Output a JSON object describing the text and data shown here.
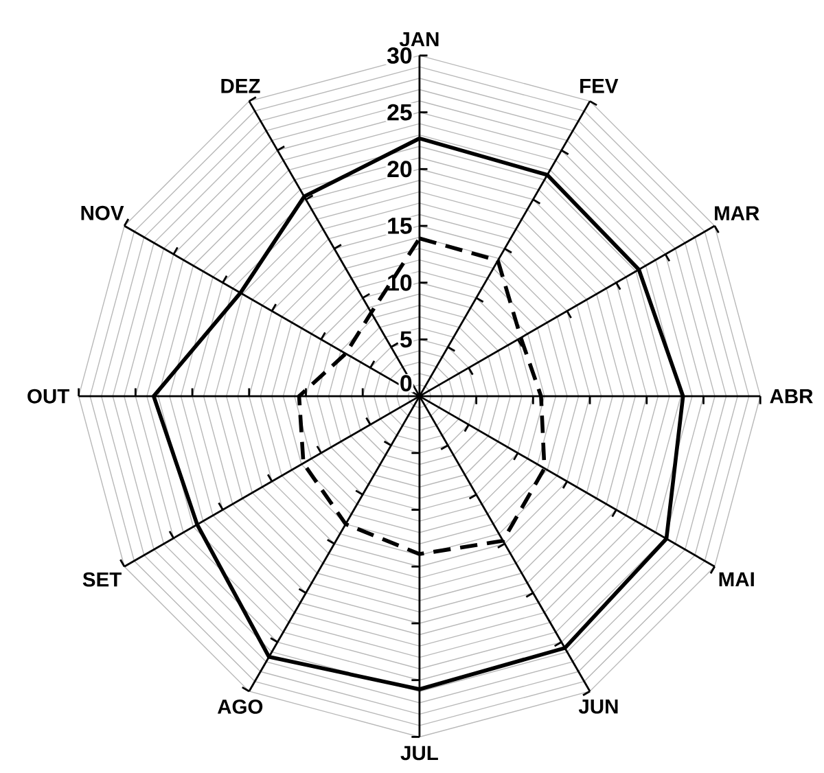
{
  "chart_data": {
    "type": "radar",
    "categories": [
      "JAN",
      "FEV",
      "MAR",
      "ABR",
      "MAI",
      "JUN",
      "JUL",
      "AGO",
      "SET",
      "OUT",
      "NOV",
      "DEZ"
    ],
    "series": [
      {
        "color": "#000000",
        "line_style": "solid",
        "values": [
          22.7,
          22.5,
          22.3,
          23.2,
          25.1,
          25.6,
          25.8,
          26.5,
          22.6,
          23.4,
          18.2,
          20.3
        ]
      },
      {
        "color": "#000000",
        "line_style": "dashed",
        "values": [
          13.9,
          13.8,
          10.3,
          10.7,
          12.7,
          14.7,
          13.9,
          13.0,
          11.8,
          10.6,
          7.5,
          8.5
        ]
      }
    ],
    "ylim": [
      0,
      30
    ],
    "yticks": [
      0,
      5,
      10,
      15,
      20,
      25,
      30
    ],
    "grid": true,
    "marker": "none"
  }
}
